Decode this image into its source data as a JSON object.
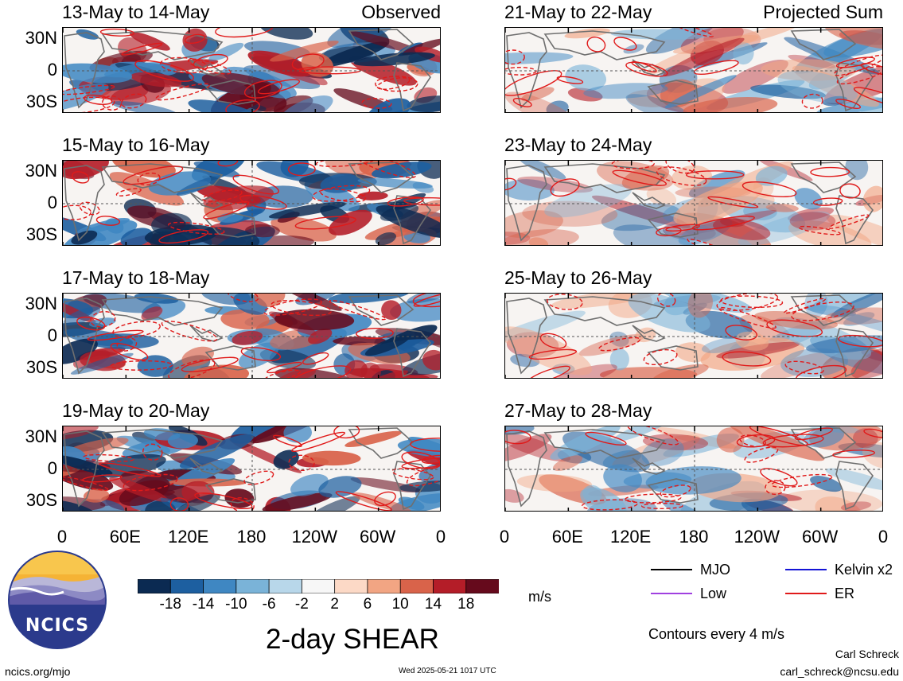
{
  "panels": {
    "left": [
      {
        "date": "13-May to 14-May",
        "label": "Observed"
      },
      {
        "date": "15-May to 16-May",
        "label": ""
      },
      {
        "date": "17-May to 18-May",
        "label": ""
      },
      {
        "date": "19-May to 20-May",
        "label": ""
      }
    ],
    "right": [
      {
        "date": "21-May to 22-May",
        "label": "Projected Sum"
      },
      {
        "date": "23-May to 24-May",
        "label": ""
      },
      {
        "date": "25-May to 26-May",
        "label": ""
      },
      {
        "date": "27-May to 28-May",
        "label": ""
      }
    ]
  },
  "lat_labels": [
    "30N",
    "0",
    "30S"
  ],
  "lon_labels": [
    "0",
    "60E",
    "120E",
    "180",
    "120W",
    "60W",
    "0"
  ],
  "colorbar": {
    "labels": [
      "-18",
      "-14",
      "-10",
      "-6",
      "-2",
      "2",
      "6",
      "10",
      "14",
      "18"
    ],
    "colors": [
      "#0b2a52",
      "#1d5fa0",
      "#3f87c2",
      "#7ab3d8",
      "#b8d7ea",
      "#f7f7f7",
      "#fcd9c6",
      "#f2a583",
      "#d9634a",
      "#b41d28",
      "#660a1c"
    ],
    "units": "m/s"
  },
  "legend": {
    "items": [
      {
        "label": "MJO",
        "color": "#000000"
      },
      {
        "label": "Kelvin x2",
        "color": "#1414d6"
      },
      {
        "label": "Low",
        "color": "#a040e0"
      },
      {
        "label": "ER",
        "color": "#e01a1a"
      }
    ],
    "note": "Contours every 4 m/s"
  },
  "title": "2-day SHEAR",
  "logo": {
    "text": "NCICS"
  },
  "footer": {
    "url": "ncics.org/mjo",
    "timestamp": "Wed 2025-05-21 1017 UTC",
    "author": "Carl Schreck",
    "email": "carl_schreck@ncsu.edu"
  }
}
